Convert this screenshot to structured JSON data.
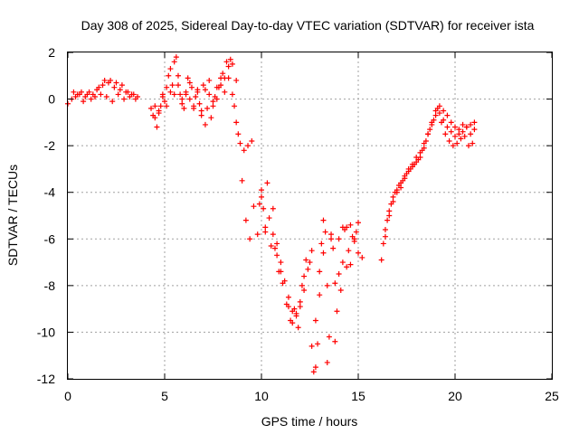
{
  "chart_data": {
    "type": "scatter",
    "title": "Day 308 of 2025, Sidereal Day-to-day VTEC variation (SDTVAR) for receiver ista",
    "xlabel": "GPS time / hours",
    "ylabel": "SDTVAR / TECUs",
    "xlim": [
      0,
      25
    ],
    "ylim": [
      -12,
      2
    ],
    "xticks": [
      "0",
      "5",
      "10",
      "15",
      "20",
      "25"
    ],
    "yticks": [
      "2",
      "0",
      "-2",
      "-4",
      "-6",
      "-8",
      "-10",
      "-12"
    ],
    "grid": true,
    "marker": "plus",
    "color": "#ff0000",
    "series": [
      {
        "x": [
          0.0,
          0.3,
          0.6,
          0.9,
          1.2,
          1.5,
          1.8,
          2.1,
          2.4,
          2.7,
          3.0,
          3.3,
          3.6,
          4.3,
          4.5,
          4.7,
          4.9,
          5.1,
          5.3,
          5.5,
          5.7,
          5.9,
          6.1,
          6.3,
          6.5,
          6.7,
          6.9,
          7.1,
          7.3,
          7.5,
          7.7,
          7.9,
          8.1,
          8.3,
          8.5,
          8.7,
          8.9,
          9.1,
          9.3,
          9.5,
          9.8,
          10.0,
          10.2,
          10.4,
          10.6,
          10.8,
          11.0,
          11.2,
          11.4,
          11.6,
          11.8,
          12.0,
          12.2,
          12.4,
          12.6,
          12.8,
          13.0,
          13.2,
          13.4,
          13.6,
          13.8,
          14.0,
          14.2,
          14.4,
          14.6,
          14.8,
          15.0,
          15.2,
          16.2,
          16.4,
          16.6,
          16.8,
          17.0,
          17.2,
          17.4,
          17.6,
          17.8,
          18.0,
          18.2,
          18.4,
          18.6,
          18.8,
          19.0,
          19.2,
          19.4,
          19.6,
          19.8,
          20.0,
          20.2,
          20.4,
          20.6,
          20.8,
          21.0
        ],
        "y": [
          -0.2,
          0.3,
          0.2,
          0.1,
          0.0,
          0.4,
          0.6,
          0.7,
          0.5,
          0.4,
          0.3,
          0.2,
          0.1,
          -0.4,
          -0.8,
          -0.5,
          0.2,
          -0.3,
          1.3,
          0.2,
          0.6,
          -0.2,
          0.3,
          0.0,
          -0.3,
          0.4,
          -0.5,
          -1.1,
          0.2,
          -0.1,
          0.5,
          0.9,
          0.3,
          1.4,
          0.2,
          -1.0,
          -1.9,
          -2.2,
          -2.0,
          -1.8,
          -5.8,
          -3.9,
          -5.7,
          -5.1,
          -4.7,
          -6.2,
          -7.0,
          -7.8,
          -8.5,
          -9.1,
          -9.3,
          -8.7,
          -8.2,
          -7.3,
          -10.6,
          -11.5,
          -7.4,
          -6.6,
          -11.3,
          -6.0,
          -10.4,
          -7.5,
          -5.5,
          -7.2,
          -5.4,
          -6.1,
          -5.3,
          -6.8,
          -6.9,
          -5.6,
          -4.8,
          -4.2,
          -3.9,
          -3.6,
          -3.4,
          -3.1,
          -2.9,
          -2.7,
          -2.5,
          -2.1,
          -1.5,
          -1.0,
          -0.5,
          -0.6,
          -0.9,
          -1.2,
          -1.4,
          -1.6,
          -1.5,
          -1.4,
          -1.2,
          -1.5,
          -1.3
        ]
      },
      {
        "x": [
          0.2,
          0.5,
          0.8,
          1.1,
          1.4,
          1.7,
          2.0,
          2.3,
          2.6,
          2.9,
          3.2,
          3.5,
          4.4,
          4.6,
          4.8,
          5.0,
          5.2,
          5.4,
          5.6,
          5.8,
          6.0,
          6.2,
          6.4,
          6.6,
          6.8,
          7.0,
          7.2,
          7.4,
          7.6,
          7.8,
          8.0,
          8.2,
          8.4,
          8.6,
          8.8,
          9.0,
          9.2,
          9.4,
          9.6,
          9.9,
          10.1,
          10.3,
          10.5,
          10.7,
          10.9,
          11.1,
          11.3,
          11.5,
          11.7,
          11.9,
          12.1,
          12.3,
          12.5,
          12.7,
          12.9,
          13.1,
          13.3,
          13.5,
          13.7,
          13.9,
          14.1,
          14.3,
          14.5,
          14.7,
          14.9,
          16.3,
          16.5,
          16.7,
          16.9,
          17.1,
          17.3,
          17.5,
          17.7,
          17.9,
          18.1,
          18.3,
          18.5,
          18.7,
          18.9,
          19.1,
          19.3,
          19.5,
          19.7,
          19.9,
          20.1,
          20.3,
          20.5,
          20.7,
          20.9
        ],
        "y": [
          0.0,
          0.2,
          -0.1,
          0.3,
          0.1,
          0.2,
          0.1,
          -0.1,
          0.2,
          0.0,
          0.1,
          0.0,
          -0.7,
          -1.2,
          -0.3,
          -0.1,
          1.0,
          0.6,
          1.8,
          0.2,
          -0.4,
          0.9,
          0.5,
          0.1,
          -0.2,
          0.6,
          -0.4,
          -0.8,
          0.1,
          0.5,
          1.1,
          1.6,
          1.7,
          -0.3,
          -1.5,
          -3.5,
          -5.2,
          -6.0,
          -4.6,
          -4.5,
          -4.7,
          -3.6,
          -6.3,
          -6.4,
          -7.4,
          -7.9,
          -8.8,
          -9.5,
          -9.0,
          -9.8,
          -8.0,
          -6.9,
          -7.0,
          -11.7,
          -10.5,
          -6.2,
          -5.7,
          -10.2,
          -6.4,
          -9.1,
          -8.2,
          -5.6,
          -6.5,
          -5.9,
          -5.7,
          -6.2,
          -5.2,
          -4.5,
          -4.0,
          -3.7,
          -3.5,
          -3.2,
          -3.0,
          -2.8,
          -2.6,
          -2.2,
          -1.8,
          -1.3,
          -0.9,
          -0.4,
          -1.0,
          -1.5,
          -1.8,
          -2.0,
          -1.9,
          -1.7,
          -1.6,
          -2.0,
          -1.9
        ]
      },
      {
        "x": [
          0.4,
          0.7,
          1.0,
          1.3,
          1.6,
          1.9,
          2.2,
          2.5,
          2.8,
          3.1,
          3.4,
          4.5,
          4.7,
          4.9,
          5.1,
          5.3,
          5.5,
          5.7,
          5.9,
          6.1,
          6.3,
          6.5,
          6.7,
          6.9,
          7.1,
          7.3,
          7.5,
          7.7,
          7.9,
          8.1,
          8.3,
          8.5,
          8.7,
          10.0,
          10.2,
          10.6,
          10.8,
          11.0,
          11.4,
          11.6,
          11.8,
          12.0,
          12.2,
          12.6,
          12.8,
          13.0,
          13.2,
          13.4,
          13.6,
          13.8,
          14.0,
          14.2,
          14.4,
          14.6,
          14.8,
          15.0,
          16.4,
          16.6,
          16.8,
          17.0,
          17.2,
          17.4,
          17.6,
          17.8,
          18.0,
          18.2,
          18.4,
          18.6,
          18.8,
          19.0,
          19.2,
          19.4,
          19.6,
          19.8,
          20.0,
          20.2,
          20.4,
          20.6,
          20.8,
          21.0
        ],
        "y": [
          0.1,
          0.3,
          0.2,
          0.2,
          0.5,
          0.8,
          0.8,
          0.7,
          0.6,
          0.3,
          0.2,
          -0.3,
          -0.6,
          0.1,
          0.5,
          0.3,
          1.6,
          1.0,
          0.0,
          0.2,
          0.7,
          -0.4,
          0.3,
          -0.7,
          0.4,
          0.8,
          -0.3,
          0.0,
          0.6,
          0.9,
          0.9,
          1.5,
          0.8,
          -4.2,
          -5.5,
          -5.8,
          -6.7,
          -7.4,
          -8.9,
          -9.6,
          -9.2,
          -8.9,
          -7.6,
          -6.5,
          -9.5,
          -8.4,
          -5.2,
          -8.0,
          -5.8,
          -7.9,
          -6.0,
          -7.0,
          -5.5,
          -7.1,
          -6.0,
          -6.6,
          -5.9,
          -5.0,
          -4.4,
          -4.0,
          -3.8,
          -3.3,
          -3.0,
          -2.8,
          -2.5,
          -2.3,
          -1.9,
          -1.5,
          -1.1,
          -0.7,
          -0.3,
          -0.5,
          -0.7,
          -1.0,
          -1.2,
          -1.3,
          -1.1,
          -1.2,
          -1.1,
          -1.0
        ]
      }
    ]
  }
}
